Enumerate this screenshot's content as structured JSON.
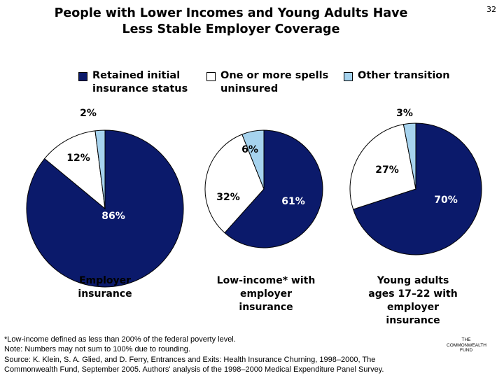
{
  "page_number": "32",
  "title_lines": [
    "People with Lower Incomes and Young Adults Have",
    "Less Stable Employer Coverage"
  ],
  "legend": [
    {
      "lines": [
        "Retained initial",
        "insurance status"
      ],
      "color": "#0b1a6b"
    },
    {
      "lines": [
        "One or more spells",
        "uninsured"
      ],
      "color": "#ffffff"
    },
    {
      "lines": [
        "Other transition"
      ],
      "color": "#a6d3ee"
    }
  ],
  "chart_data": [
    {
      "type": "pie",
      "caption_lines": [
        "Employer",
        "insurance"
      ],
      "slices": [
        {
          "category": "Retained initial insurance status",
          "value": 86,
          "label": "86%"
        },
        {
          "category": "One or more spells uninsured",
          "value": 12,
          "label": "12%"
        },
        {
          "category": "Other transition",
          "value": 2,
          "label": "2%"
        }
      ]
    },
    {
      "type": "pie",
      "caption_lines": [
        "Low-income* with",
        "employer",
        "insurance"
      ],
      "slices": [
        {
          "category": "Retained initial insurance status",
          "value": 61,
          "label": "61%"
        },
        {
          "category": "One or more spells uninsured",
          "value": 32,
          "label": "32%"
        },
        {
          "category": "Other transition",
          "value": 6,
          "label": "6%"
        }
      ]
    },
    {
      "type": "pie",
      "caption_lines": [
        "Young adults",
        "ages 17–22 with",
        "employer",
        "insurance"
      ],
      "slices": [
        {
          "category": "Retained initial insurance status",
          "value": 70,
          "label": "70%"
        },
        {
          "category": "One or more spells uninsured",
          "value": 27,
          "label": "27%"
        },
        {
          "category": "Other transition",
          "value": 3,
          "label": "3%"
        }
      ]
    }
  ],
  "footnotes": [
    "*Low-income defined as less than 200% of the federal poverty level.",
    "Note: Numbers may not sum to 100% due to rounding.",
    "Source: K. Klein, S. A. Glied, and D. Ferry, Entrances and Exits: Health Insurance Churning, 1998–2000, The",
    "Commonwealth Fund, September 2005. Authors' analysis of the 1998–2000 Medical Expenditure Panel Survey."
  ],
  "logo_lines": [
    "THE",
    "COMMONWEALTH",
    "FUND"
  ]
}
